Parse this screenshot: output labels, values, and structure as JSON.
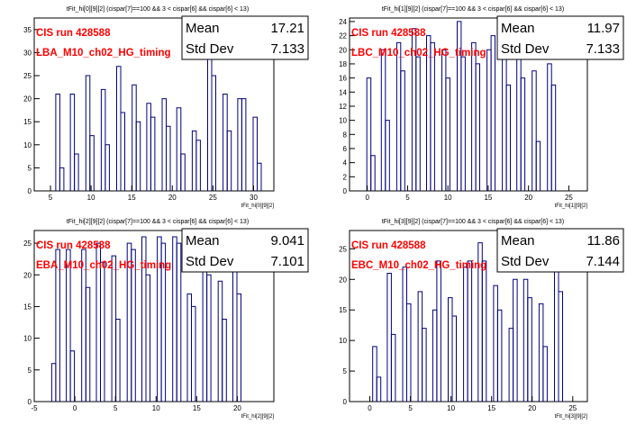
{
  "colors": {
    "frame": "#000000",
    "histogram_line": "#000080",
    "label_red": "#ff0000",
    "background": "#ffffff"
  },
  "stats_labels": {
    "mean": "Mean",
    "std": "Std Dev"
  },
  "chart_data": [
    {
      "type": "histogram",
      "title": "tFit_hi[0][9][2] (cispar[7]==100 && 3 < cispar[6] && cispar[6] < 13)",
      "xlabel": "tFit_hi[0][9][2]",
      "ylabel": "",
      "xlim": [
        3,
        32.5
      ],
      "ylim": [
        0,
        37.5
      ],
      "xticks": [
        5,
        10,
        15,
        20,
        25,
        30
      ],
      "yticks": [
        0,
        5,
        10,
        15,
        20,
        25,
        30,
        35
      ],
      "run_label": "CIS run 428588",
      "channel_label": "LBA_M10_ch02_HG_timing",
      "stats": {
        "mean": "17.21",
        "std": "7.133"
      },
      "x": [
        5.9,
        6.4,
        7.7,
        8.2,
        9.6,
        10.1,
        11.5,
        12.0,
        13.4,
        13.9,
        15.3,
        15.8,
        17.1,
        17.6,
        19.0,
        19.5,
        20.8,
        21.3,
        22.7,
        23.2,
        24.6,
        25.1,
        26.5,
        27.0,
        28.3,
        28.8,
        30.2,
        30.7
      ],
      "values": [
        21,
        5,
        21,
        8,
        25,
        12,
        22,
        10,
        27,
        17,
        23,
        15,
        19,
        16,
        20,
        14,
        18,
        8,
        13,
        11,
        30,
        25,
        21,
        13,
        20,
        20,
        16,
        6
      ]
    },
    {
      "type": "histogram",
      "title": "tFit_hi[1][9][2] (cispar[7]==100 && 3 < cispar[6] && cispar[6] < 13)",
      "xlabel": "tFit_hi[1][9][2]",
      "ylabel": "",
      "xlim": [
        -2.2,
        27.3
      ],
      "ylim": [
        0,
        24.5
      ],
      "xticks": [
        0,
        5,
        10,
        15,
        20,
        25
      ],
      "yticks": [
        0,
        2,
        4,
        6,
        8,
        10,
        12,
        14,
        16,
        18,
        20,
        22,
        24
      ],
      "run_label": "CIS run 428588",
      "channel_label": "LBC_M10_ch02_HG_timing",
      "stats": {
        "mean": "11.97",
        "std": "7.133"
      },
      "x": [
        0.2,
        0.7,
        2.0,
        2.5,
        3.9,
        4.4,
        5.8,
        6.3,
        7.6,
        8.1,
        9.5,
        10.0,
        11.4,
        11.9,
        13.2,
        13.7,
        15.1,
        15.6,
        17.0,
        17.5,
        18.8,
        19.3,
        20.7,
        21.2,
        22.6,
        23.1
      ],
      "values": [
        16,
        5,
        20,
        10,
        21,
        17,
        23,
        19,
        22,
        21,
        20,
        16,
        24,
        19,
        21,
        18,
        20,
        22,
        22,
        15,
        22,
        16,
        17,
        7,
        18,
        15
      ]
    },
    {
      "type": "histogram",
      "title": "tFit_hi[2][9][2] (cispar[7]==100 && 3 < cispar[6] && cispar[6] < 13)",
      "xlabel": "tFit_hi[2][9][2]",
      "ylabel": "",
      "xlim": [
        -5,
        24.5
      ],
      "ylim": [
        0,
        27
      ],
      "xticks": [
        -5,
        0,
        5,
        10,
        15,
        20
      ],
      "yticks": [
        0,
        5,
        10,
        15,
        20,
        25
      ],
      "run_label": "CIS run 428588",
      "channel_label": "EBA_M10_ch02_HG_timing",
      "stats": {
        "mean": "9.041",
        "std": "7.101"
      },
      "x": [
        -2.6,
        -2.1,
        -0.8,
        -0.3,
        1.1,
        1.6,
        2.9,
        3.4,
        4.8,
        5.3,
        6.7,
        7.2,
        8.5,
        9.0,
        10.4,
        10.9,
        12.3,
        12.8,
        14.1,
        14.6,
        16.0,
        16.5,
        17.9,
        18.4,
        19.7,
        20.2
      ],
      "values": [
        6,
        24,
        24,
        8,
        24,
        18,
        25,
        22,
        23,
        13,
        25,
        24,
        26,
        20,
        26,
        25,
        26,
        25,
        17,
        15,
        22,
        20,
        19,
        13,
        22,
        17
      ]
    },
    {
      "type": "histogram",
      "title": "tFit_hi[3][9][2] (cispar[7]==100 && 3 < cispar[6] && cispar[6] < 13)",
      "xlabel": "tFit_hi[3][9][2]",
      "ylabel": "",
      "xlim": [
        -2.5,
        26.8
      ],
      "ylim": [
        0,
        28
      ],
      "xticks": [
        0,
        5,
        10,
        15,
        20,
        25
      ],
      "yticks": [
        0,
        5,
        10,
        15,
        20,
        25
      ],
      "run_label": "CIS run 428588",
      "channel_label": "EBC_M10_ch02_HG_timing",
      "stats": {
        "mean": "11.86",
        "std": "7.144"
      },
      "x": [
        0.6,
        1.1,
        2.4,
        2.9,
        4.3,
        4.8,
        6.2,
        6.7,
        8.0,
        8.5,
        9.9,
        10.4,
        11.8,
        12.3,
        13.6,
        14.1,
        15.5,
        16.0,
        17.4,
        17.9,
        19.2,
        19.7,
        21.1,
        21.6,
        23.0,
        23.5
      ],
      "values": [
        9,
        4,
        21,
        11,
        22,
        16,
        18,
        12,
        15,
        23,
        17,
        14,
        22,
        23,
        26,
        23,
        19,
        15,
        12,
        20,
        20,
        17,
        16,
        9,
        22,
        18
      ]
    }
  ]
}
